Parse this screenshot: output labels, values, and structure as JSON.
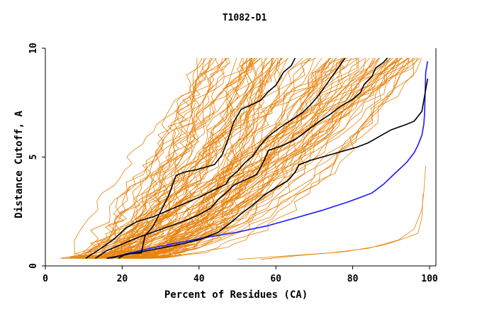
{
  "chart_data": {
    "type": "line",
    "title": "T1082-D1",
    "xlabel": "Percent of Residues (CA)",
    "ylabel": "Distance Cutoff, A",
    "xlim": [
      0,
      100
    ],
    "ylim": [
      0,
      10
    ],
    "x_ticks": [
      "0",
      "20",
      "40",
      "60",
      "80",
      "100"
    ],
    "y_ticks": [
      "0",
      "5",
      "10"
    ],
    "grid": false,
    "colors": {
      "orange": "#e8820c",
      "black": "#000000",
      "blue": "#1a1aff",
      "axis": "#000000"
    },
    "bundle_note": "many orange curves (other models)",
    "series": [
      {
        "color": "#1a1aff",
        "points": [
          [
            17,
            0.35
          ],
          [
            22,
            0.6
          ],
          [
            30,
            0.9
          ],
          [
            40,
            1.25
          ],
          [
            50,
            1.55
          ],
          [
            58,
            1.85
          ],
          [
            65,
            2.2
          ],
          [
            72,
            2.55
          ],
          [
            79,
            2.95
          ],
          [
            85,
            3.35
          ],
          [
            88,
            3.75
          ],
          [
            91,
            4.25
          ],
          [
            94,
            4.75
          ],
          [
            96,
            5.2
          ],
          [
            97,
            5.55
          ],
          [
            98,
            6.0
          ],
          [
            98.5,
            6.5
          ],
          [
            98.7,
            7.0
          ],
          [
            98.8,
            7.6
          ],
          [
            98.9,
            8.2
          ],
          [
            99,
            8.9
          ],
          [
            99.5,
            9.4
          ]
        ]
      },
      {
        "color": "#000000",
        "points": [
          [
            10.5,
            0.35
          ],
          [
            14,
            0.75
          ],
          [
            18,
            1.25
          ],
          [
            21,
            1.75
          ],
          [
            24,
            2.05
          ],
          [
            28,
            2.25
          ],
          [
            32,
            2.55
          ],
          [
            36,
            2.85
          ],
          [
            40,
            3.15
          ],
          [
            44,
            3.5
          ],
          [
            47,
            3.75
          ],
          [
            48,
            4.05
          ],
          [
            50,
            4.35
          ],
          [
            52,
            4.75
          ],
          [
            54,
            5.05
          ],
          [
            56,
            5.55
          ],
          [
            58,
            5.95
          ],
          [
            61,
            6.35
          ],
          [
            64,
            6.7
          ],
          [
            67,
            7.05
          ],
          [
            69,
            7.4
          ],
          [
            71,
            7.8
          ],
          [
            73,
            8.3
          ],
          [
            75,
            8.8
          ],
          [
            77,
            9.3
          ],
          [
            78,
            9.55
          ]
        ]
      },
      {
        "color": "#000000",
        "points": [
          [
            13,
            0.35
          ],
          [
            16,
            0.7
          ],
          [
            20,
            1.0
          ],
          [
            24,
            1.3
          ],
          [
            28,
            1.55
          ],
          [
            32,
            1.8
          ],
          [
            36,
            2.05
          ],
          [
            40,
            2.35
          ],
          [
            43,
            2.65
          ],
          [
            45,
            3.05
          ],
          [
            47,
            3.35
          ],
          [
            49,
            3.7
          ],
          [
            52,
            3.95
          ],
          [
            55,
            4.2
          ],
          [
            57,
            4.85
          ],
          [
            58,
            5.3
          ],
          [
            62,
            5.55
          ],
          [
            65,
            5.8
          ],
          [
            68,
            6.2
          ],
          [
            71,
            6.6
          ],
          [
            74,
            6.95
          ],
          [
            77,
            7.35
          ],
          [
            80,
            7.65
          ],
          [
            82,
            7.95
          ],
          [
            83,
            8.35
          ],
          [
            85,
            8.7
          ],
          [
            86,
            9.1
          ],
          [
            88,
            9.35
          ],
          [
            89,
            9.55
          ]
        ]
      },
      {
        "color": "#000000",
        "points": [
          [
            16,
            0.35
          ],
          [
            22,
            0.55
          ],
          [
            28,
            0.75
          ],
          [
            34,
            0.95
          ],
          [
            40,
            1.2
          ],
          [
            45,
            1.55
          ],
          [
            48,
            1.95
          ],
          [
            51,
            2.4
          ],
          [
            54,
            2.8
          ],
          [
            57,
            3.25
          ],
          [
            60,
            3.6
          ],
          [
            63,
            3.9
          ],
          [
            65,
            4.3
          ],
          [
            66,
            4.65
          ],
          [
            69,
            4.85
          ],
          [
            73,
            5.05
          ],
          [
            77,
            5.25
          ],
          [
            81,
            5.45
          ],
          [
            84,
            5.65
          ],
          [
            87,
            5.95
          ],
          [
            90,
            6.25
          ],
          [
            94,
            6.5
          ],
          [
            96,
            6.65
          ],
          [
            98,
            7.1
          ],
          [
            98.5,
            7.6
          ],
          [
            99,
            8.1
          ],
          [
            99.5,
            8.6
          ]
        ]
      },
      {
        "color": "#000000",
        "points": [
          [
            19,
            0.35
          ],
          [
            21,
            0.55
          ],
          [
            25,
            0.6
          ],
          [
            25.5,
            1.05
          ],
          [
            26,
            1.4
          ],
          [
            28,
            1.8
          ],
          [
            30,
            2.5
          ],
          [
            32,
            3.2
          ],
          [
            34,
            4.15
          ],
          [
            36,
            4.3
          ],
          [
            40,
            4.45
          ],
          [
            44,
            4.65
          ],
          [
            46,
            5.1
          ],
          [
            47,
            5.55
          ],
          [
            48,
            6.05
          ],
          [
            49,
            6.6
          ],
          [
            51,
            7.2
          ],
          [
            53,
            7.35
          ],
          [
            56,
            7.6
          ],
          [
            58,
            8.0
          ],
          [
            60,
            8.3
          ],
          [
            62,
            8.9
          ],
          [
            64,
            9.2
          ],
          [
            65,
            9.55
          ]
        ]
      }
    ]
  }
}
